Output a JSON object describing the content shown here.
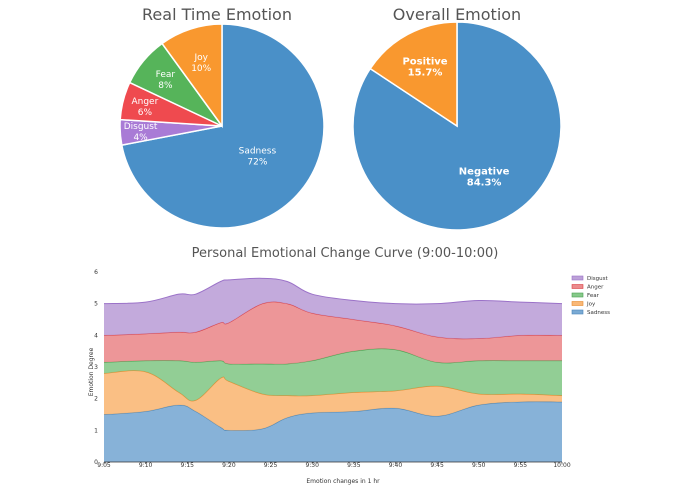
{
  "chart_data": [
    {
      "type": "pie",
      "title": "Real Time Emotion",
      "slices": [
        {
          "label": "Sadness",
          "value": 72,
          "value_label": "72%",
          "color": "#4a90c8"
        },
        {
          "label": "Disgust",
          "value": 4,
          "value_label": "4%",
          "color": "#a97bd6"
        },
        {
          "label": "Anger",
          "value": 6,
          "value_label": "6%",
          "color": "#ef4a4f"
        },
        {
          "label": "Fear",
          "value": 8,
          "value_label": "8%",
          "color": "#56b45a"
        },
        {
          "label": "Joy",
          "value": 10,
          "value_label": "10%",
          "color": "#f9982f"
        }
      ]
    },
    {
      "type": "pie",
      "title": "Overall Emotion",
      "slices": [
        {
          "label": "Negative",
          "value": 84.3,
          "value_label": "84.3%",
          "color": "#4a90c8"
        },
        {
          "label": "Positive",
          "value": 15.7,
          "value_label": "15.7%",
          "color": "#f9982f"
        }
      ]
    },
    {
      "type": "area",
      "stacked": true,
      "title": "Personal Emotional Change Curve (9:00-10:00)",
      "xlabel": "Emotion changes in 1 hr",
      "ylabel": "Emotion Degree",
      "ylim": [
        0,
        6
      ],
      "yticks": [
        0,
        1,
        2,
        3,
        4,
        5,
        6
      ],
      "xticks": [
        "9:05",
        "9:10",
        "9:15",
        "9:20",
        "9:25",
        "9:30",
        "9:35",
        "9:40",
        "9:45",
        "9:50",
        "9:55",
        "10:00"
      ],
      "x": [
        0,
        5,
        9,
        11,
        14,
        15,
        19,
        22,
        25,
        30,
        35,
        40,
        45,
        50,
        55
      ],
      "series": [
        {
          "name": "Sadness",
          "color": "#7aaad4",
          "values": [
            1.5,
            1.6,
            1.8,
            1.6,
            1.1,
            1.0,
            1.05,
            1.4,
            1.55,
            1.6,
            1.7,
            1.45,
            1.8,
            1.9,
            1.9
          ]
        },
        {
          "name": "Joy",
          "color": "#f9b877",
          "values": [
            1.3,
            1.25,
            0.4,
            0.35,
            1.55,
            1.55,
            1.1,
            0.7,
            0.55,
            0.6,
            0.55,
            0.95,
            0.35,
            0.25,
            0.2
          ]
        },
        {
          "name": "Fear",
          "color": "#86c98a",
          "values": [
            0.35,
            0.35,
            1.0,
            1.2,
            0.55,
            0.55,
            0.95,
            1.0,
            1.1,
            1.3,
            1.3,
            0.75,
            1.05,
            1.05,
            1.1
          ]
        },
        {
          "name": "Anger",
          "color": "#eb8b8d",
          "values": [
            0.85,
            0.85,
            0.9,
            0.95,
            1.2,
            1.3,
            1.9,
            1.9,
            1.5,
            1.0,
            0.75,
            0.8,
            0.7,
            0.8,
            0.8
          ]
        },
        {
          "name": "Disgust",
          "color": "#bca1d8",
          "values": [
            1.0,
            1.0,
            1.2,
            1.2,
            1.3,
            1.35,
            0.8,
            0.7,
            0.6,
            0.6,
            0.7,
            1.05,
            1.2,
            1.05,
            1.0
          ]
        }
      ],
      "legend": [
        "Disgust",
        "Anger",
        "Fear",
        "Joy",
        "Sadness"
      ],
      "legend_position": "top-right",
      "grid": false
    }
  ]
}
